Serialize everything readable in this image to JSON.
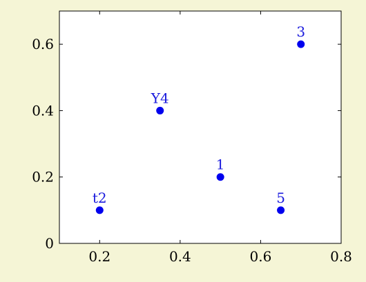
{
  "chart_data": {
    "type": "scatter",
    "title": "",
    "xlabel": "",
    "ylabel": "",
    "xlim": [
      0.1,
      0.8
    ],
    "ylim": [
      0,
      0.7
    ],
    "x_ticks": [
      "0.2",
      "0.4",
      "0.6",
      "0.8"
    ],
    "y_ticks": [
      "0",
      "0.2",
      "0.4",
      "0.6"
    ],
    "grid": false,
    "legend": "none",
    "points": [
      {
        "x": 0.2,
        "y": 0.1,
        "label": "t2"
      },
      {
        "x": 0.35,
        "y": 0.4,
        "label": "Y4"
      },
      {
        "x": 0.5,
        "y": 0.2,
        "label": "1"
      },
      {
        "x": 0.65,
        "y": 0.1,
        "label": "5"
      },
      {
        "x": 0.7,
        "y": 0.6,
        "label": "3"
      }
    ],
    "colors": {
      "marker": "#0000ee",
      "label": "#1a1add",
      "background": "#f5f5d6",
      "plot_background": "#ffffff"
    }
  }
}
